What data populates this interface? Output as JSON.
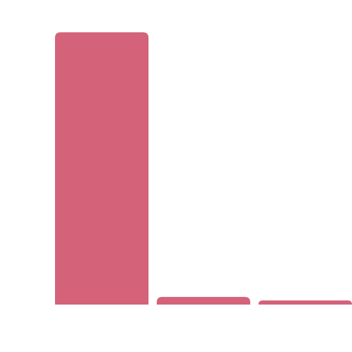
{
  "chart_data": {
    "type": "bar",
    "values": [
      100,
      2.8,
      1.5
    ],
    "color": "#d4637a",
    "ylim": [
      0,
      100
    ]
  }
}
